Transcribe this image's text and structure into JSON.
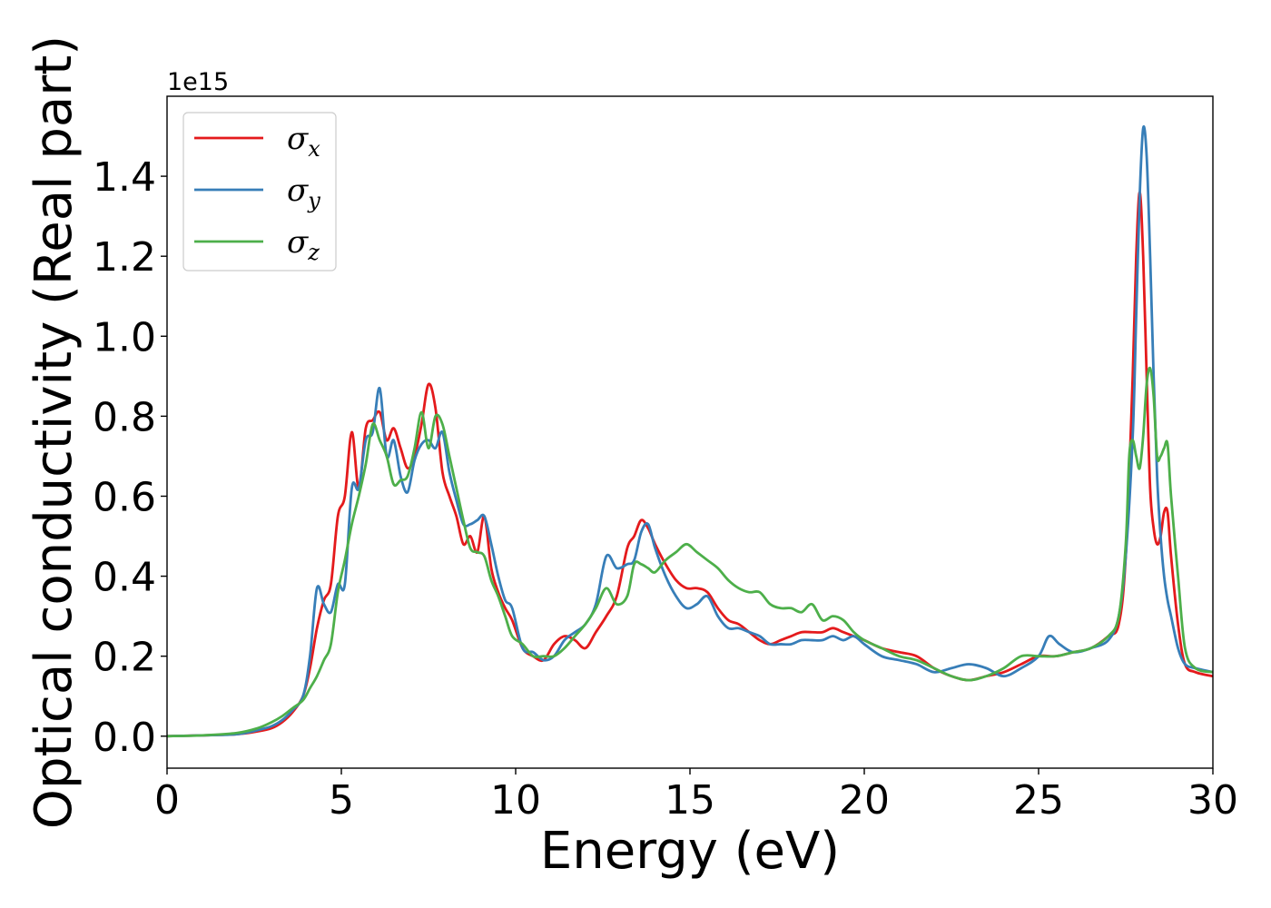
{
  "chart_data": {
    "type": "line",
    "xlabel": "Energy (eV)",
    "ylabel": "Optical conductivity (Real part)",
    "y_offset_label": "1e15",
    "xlim": [
      0,
      30
    ],
    "ylim": [
      -0.08,
      1.6
    ],
    "x_ticks": [
      0,
      5,
      10,
      15,
      20,
      25,
      30
    ],
    "y_ticks": [
      0.0,
      0.2,
      0.4,
      0.6,
      0.8,
      1.0,
      1.2,
      1.4
    ],
    "x_tick_labels": [
      "0",
      "5",
      "10",
      "15",
      "20",
      "25",
      "30"
    ],
    "y_tick_labels": [
      "0.0",
      "0.2",
      "0.4",
      "0.6",
      "0.8",
      "1.0",
      "1.2",
      "1.4"
    ],
    "grid": false,
    "legend_position": "top-left",
    "series": [
      {
        "name": "σ",
        "subscript": "x",
        "color": "#e41a1c",
        "x": [
          0,
          1,
          2,
          2.6,
          3,
          3.3,
          3.6,
          3.9,
          4.1,
          4.3,
          4.5,
          4.7,
          4.9,
          5.1,
          5.3,
          5.5,
          5.7,
          5.9,
          6.1,
          6.3,
          6.5,
          6.7,
          6.9,
          7.1,
          7.3,
          7.5,
          7.7,
          7.9,
          8.1,
          8.3,
          8.5,
          8.7,
          8.9,
          9.1,
          9.3,
          9.5,
          9.7,
          9.9,
          10.2,
          10.5,
          10.8,
          11.1,
          11.4,
          11.7,
          12.0,
          12.3,
          12.6,
          12.9,
          13.2,
          13.4,
          13.6,
          13.8,
          14.0,
          14.3,
          14.6,
          14.9,
          15.2,
          15.5,
          15.8,
          16.1,
          16.4,
          16.7,
          17.0,
          17.3,
          17.6,
          17.9,
          18.2,
          18.5,
          18.8,
          19.1,
          19.4,
          19.7,
          20.0,
          20.5,
          21.0,
          21.5,
          22.0,
          22.5,
          23.0,
          23.5,
          24.0,
          24.5,
          25.0,
          25.5,
          26.0,
          26.5,
          27.0,
          27.3,
          27.5,
          27.7,
          27.8,
          27.9,
          28.0,
          28.1,
          28.2,
          28.3,
          28.4,
          28.5,
          28.6,
          28.7,
          28.8,
          29.0,
          29.2,
          29.5,
          30.0
        ],
        "y": [
          0,
          0.002,
          0.005,
          0.012,
          0.02,
          0.035,
          0.06,
          0.1,
          0.17,
          0.27,
          0.34,
          0.38,
          0.55,
          0.6,
          0.76,
          0.62,
          0.77,
          0.79,
          0.81,
          0.74,
          0.77,
          0.72,
          0.67,
          0.7,
          0.78,
          0.88,
          0.82,
          0.66,
          0.6,
          0.55,
          0.48,
          0.5,
          0.46,
          0.55,
          0.42,
          0.36,
          0.32,
          0.29,
          0.22,
          0.2,
          0.19,
          0.23,
          0.25,
          0.24,
          0.22,
          0.26,
          0.3,
          0.35,
          0.47,
          0.5,
          0.54,
          0.52,
          0.48,
          0.43,
          0.39,
          0.37,
          0.37,
          0.36,
          0.32,
          0.29,
          0.28,
          0.26,
          0.24,
          0.23,
          0.24,
          0.25,
          0.26,
          0.26,
          0.26,
          0.27,
          0.26,
          0.25,
          0.24,
          0.22,
          0.21,
          0.2,
          0.17,
          0.15,
          0.14,
          0.15,
          0.16,
          0.18,
          0.2,
          0.2,
          0.21,
          0.22,
          0.25,
          0.28,
          0.45,
          0.9,
          1.2,
          1.36,
          1.2,
          0.9,
          0.62,
          0.52,
          0.48,
          0.5,
          0.56,
          0.56,
          0.45,
          0.28,
          0.18,
          0.16,
          0.15
        ]
      },
      {
        "name": "σ",
        "subscript": "y",
        "color": "#377eb8",
        "x": [
          0,
          1,
          2,
          2.6,
          3,
          3.3,
          3.6,
          3.9,
          4.1,
          4.3,
          4.5,
          4.7,
          4.9,
          5.1,
          5.3,
          5.5,
          5.7,
          5.9,
          6.1,
          6.3,
          6.5,
          6.7,
          6.9,
          7.1,
          7.3,
          7.5,
          7.7,
          7.9,
          8.1,
          8.3,
          8.5,
          8.7,
          8.9,
          9.1,
          9.3,
          9.5,
          9.7,
          9.9,
          10.2,
          10.5,
          10.8,
          11.1,
          11.4,
          11.7,
          12.0,
          12.3,
          12.6,
          12.9,
          13.2,
          13.4,
          13.6,
          13.8,
          14.0,
          14.3,
          14.6,
          14.9,
          15.2,
          15.5,
          15.8,
          16.1,
          16.4,
          16.7,
          17.0,
          17.3,
          17.6,
          17.9,
          18.2,
          18.5,
          18.8,
          19.1,
          19.4,
          19.7,
          20.0,
          20.5,
          21.0,
          21.5,
          22.0,
          22.5,
          23.0,
          23.5,
          24.0,
          24.5,
          25.0,
          25.3,
          25.6,
          26.0,
          26.5,
          27.0,
          27.3,
          27.5,
          27.7,
          27.8,
          27.9,
          28.0,
          28.1,
          28.2,
          28.3,
          28.4,
          28.5,
          28.6,
          28.7,
          28.8,
          29.0,
          29.2,
          29.5,
          30.0
        ],
        "y": [
          0,
          0.002,
          0.005,
          0.015,
          0.025,
          0.04,
          0.065,
          0.1,
          0.2,
          0.37,
          0.33,
          0.31,
          0.38,
          0.38,
          0.62,
          0.62,
          0.74,
          0.76,
          0.87,
          0.7,
          0.74,
          0.65,
          0.61,
          0.69,
          0.73,
          0.74,
          0.72,
          0.76,
          0.66,
          0.59,
          0.53,
          0.53,
          0.54,
          0.55,
          0.48,
          0.4,
          0.34,
          0.32,
          0.22,
          0.21,
          0.19,
          0.2,
          0.24,
          0.26,
          0.28,
          0.33,
          0.45,
          0.42,
          0.43,
          0.44,
          0.51,
          0.53,
          0.47,
          0.4,
          0.35,
          0.32,
          0.33,
          0.35,
          0.3,
          0.27,
          0.27,
          0.26,
          0.25,
          0.23,
          0.23,
          0.23,
          0.24,
          0.24,
          0.24,
          0.25,
          0.24,
          0.25,
          0.23,
          0.2,
          0.19,
          0.18,
          0.16,
          0.17,
          0.18,
          0.17,
          0.15,
          0.17,
          0.2,
          0.25,
          0.23,
          0.21,
          0.22,
          0.24,
          0.3,
          0.45,
          0.75,
          1.05,
          1.35,
          1.52,
          1.45,
          1.2,
          0.9,
          0.65,
          0.5,
          0.4,
          0.34,
          0.3,
          0.22,
          0.18,
          0.17,
          0.16
        ]
      },
      {
        "name": "σ",
        "subscript": "z",
        "color": "#4daf4a",
        "x": [
          0,
          1,
          2,
          2.6,
          3,
          3.3,
          3.6,
          3.9,
          4.1,
          4.3,
          4.5,
          4.7,
          4.9,
          5.1,
          5.3,
          5.5,
          5.7,
          5.9,
          6.1,
          6.3,
          6.5,
          6.7,
          6.9,
          7.1,
          7.3,
          7.5,
          7.7,
          7.9,
          8.1,
          8.3,
          8.5,
          8.7,
          8.9,
          9.1,
          9.3,
          9.5,
          9.7,
          9.9,
          10.2,
          10.5,
          10.8,
          11.1,
          11.4,
          11.7,
          12.0,
          12.3,
          12.6,
          12.9,
          13.2,
          13.4,
          13.6,
          13.8,
          14.0,
          14.3,
          14.6,
          14.9,
          15.2,
          15.5,
          15.8,
          16.1,
          16.4,
          16.7,
          17.0,
          17.3,
          17.6,
          17.9,
          18.2,
          18.5,
          18.8,
          19.1,
          19.4,
          19.7,
          20.0,
          20.5,
          21.0,
          21.5,
          22.0,
          22.5,
          23.0,
          23.5,
          24.0,
          24.5,
          25.0,
          25.5,
          26.0,
          26.5,
          27.0,
          27.3,
          27.5,
          27.6,
          27.7,
          27.8,
          27.9,
          28.0,
          28.1,
          28.2,
          28.3,
          28.4,
          28.5,
          28.6,
          28.7,
          28.8,
          29.0,
          29.2,
          29.5,
          30.0
        ],
        "y": [
          0,
          0.002,
          0.008,
          0.02,
          0.035,
          0.05,
          0.07,
          0.09,
          0.12,
          0.15,
          0.19,
          0.23,
          0.36,
          0.44,
          0.53,
          0.6,
          0.68,
          0.78,
          0.74,
          0.7,
          0.63,
          0.64,
          0.65,
          0.72,
          0.81,
          0.72,
          0.8,
          0.78,
          0.7,
          0.62,
          0.54,
          0.47,
          0.46,
          0.45,
          0.39,
          0.35,
          0.3,
          0.25,
          0.23,
          0.2,
          0.2,
          0.2,
          0.22,
          0.25,
          0.28,
          0.32,
          0.37,
          0.33,
          0.35,
          0.43,
          0.43,
          0.42,
          0.41,
          0.44,
          0.46,
          0.48,
          0.46,
          0.44,
          0.42,
          0.39,
          0.37,
          0.36,
          0.36,
          0.33,
          0.32,
          0.32,
          0.31,
          0.33,
          0.29,
          0.3,
          0.29,
          0.26,
          0.24,
          0.22,
          0.2,
          0.19,
          0.17,
          0.15,
          0.14,
          0.15,
          0.17,
          0.2,
          0.2,
          0.2,
          0.21,
          0.22,
          0.25,
          0.3,
          0.48,
          0.7,
          0.74,
          0.7,
          0.67,
          0.75,
          0.88,
          0.92,
          0.85,
          0.7,
          0.7,
          0.72,
          0.73,
          0.6,
          0.4,
          0.22,
          0.17,
          0.16
        ]
      }
    ]
  }
}
